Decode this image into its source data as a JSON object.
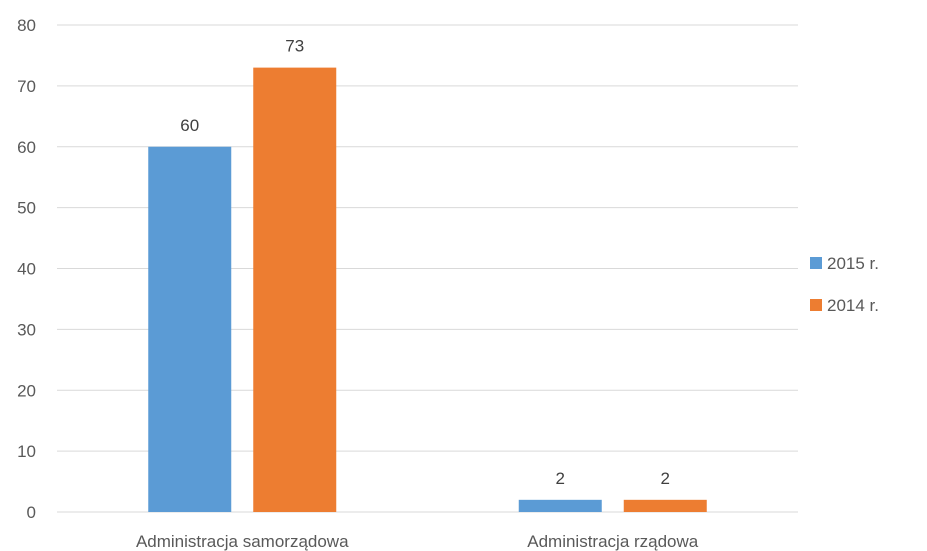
{
  "chart_data": {
    "type": "bar",
    "categories": [
      "Administracja samorządowa",
      "Administracja rządowa"
    ],
    "series": [
      {
        "name": "2015 r.",
        "values": [
          60,
          2
        ],
        "color": "#5b9bd5"
      },
      {
        "name": "2014 r.",
        "values": [
          73,
          2
        ],
        "color": "#ed7d31"
      }
    ],
    "title": "",
    "xlabel": "",
    "ylabel": "",
    "ylim": [
      0,
      80
    ],
    "yticks": [
      0,
      10,
      20,
      30,
      40,
      50,
      60,
      70,
      80
    ],
    "grid": true,
    "legend": "right",
    "data_labels": true
  }
}
